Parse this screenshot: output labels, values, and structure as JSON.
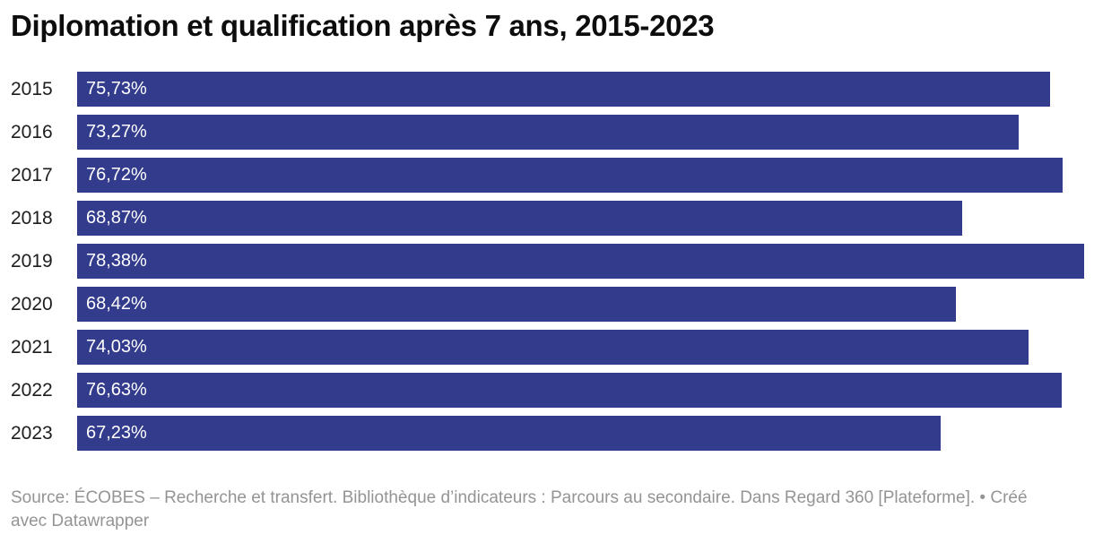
{
  "header": {
    "title": "Diplomation et qualification après 7 ans, 2015-2023"
  },
  "chart_data": {
    "type": "bar",
    "orientation": "horizontal",
    "title": "Diplomation et qualification après 7 ans, 2015-2023",
    "categories": [
      "2015",
      "2016",
      "2017",
      "2018",
      "2019",
      "2020",
      "2021",
      "2022",
      "2023"
    ],
    "values": [
      75.73,
      73.27,
      76.72,
      68.87,
      78.38,
      68.42,
      74.03,
      76.63,
      67.23
    ],
    "value_labels": [
      "75,73%",
      "73,27%",
      "76,72%",
      "68,87%",
      "78,38%",
      "68,42%",
      "74,03%",
      "76,63%",
      "67,23%"
    ],
    "xlim": [
      0,
      78.38
    ],
    "grid": false,
    "legend": "none",
    "value_label_position": "inside-left",
    "bar_color": "#333b8c",
    "value_label_color": "#ffffff",
    "category_label_color": "#1d1d1d"
  },
  "footer": {
    "source_label": "Source:",
    "source_text": "ÉCOBES – Recherche et transfert. Bibliothèque d’indicateurs : Parcours au secondaire. Dans Regard 360 [Plateforme].",
    "separator": "•",
    "credit": "Créé avec Datawrapper",
    "text_color": "#949494"
  }
}
